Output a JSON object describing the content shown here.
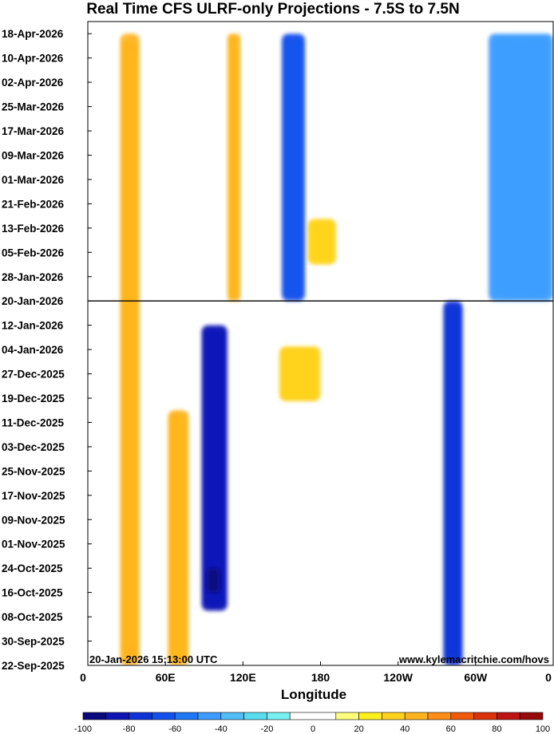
{
  "chart_data": {
    "type": "heatmap",
    "title": "Real Time CFS ULRF-only Projections - 7.5S to 7.5N",
    "xlabel": "Longitude",
    "ylabel": "",
    "x_ticks": [
      "0",
      "60E",
      "120E",
      "180",
      "120W",
      "60W",
      "0"
    ],
    "x_tick_degrees_east": [
      0,
      60,
      120,
      180,
      240,
      300,
      360
    ],
    "xlim": [
      0,
      360
    ],
    "y_ticks": [
      "18-Apr-2026",
      "10-Apr-2026",
      "02-Apr-2026",
      "25-Mar-2026",
      "17-Mar-2026",
      "09-Mar-2026",
      "01-Mar-2026",
      "21-Feb-2026",
      "13-Feb-2026",
      "05-Feb-2026",
      "28-Jan-2026",
      "20-Jan-2026",
      "12-Jan-2026",
      "04-Jan-2026",
      "27-Dec-2025",
      "19-Dec-2025",
      "11-Dec-2025",
      "03-Dec-2025",
      "25-Nov-2025",
      "17-Nov-2025",
      "09-Nov-2025",
      "01-Nov-2025",
      "24-Oct-2025",
      "16-Oct-2025",
      "08-Oct-2025",
      "30-Sep-2025",
      "22-Sep-2025"
    ],
    "ylim": [
      "22-Sep-2025",
      "22-Apr-2026"
    ],
    "divider_date": "20-Jan-2026",
    "annotation_left": "20-Jan-2026 15:13:00 UTC",
    "annotation_right": "www.kylemacritchie.com/hovs",
    "colorbar": {
      "ticks": [
        -100,
        -80,
        -60,
        -40,
        -20,
        0,
        20,
        40,
        60,
        80,
        100
      ],
      "levels": [
        -100,
        -90,
        -80,
        -70,
        -60,
        -50,
        -40,
        -30,
        -20,
        -10,
        10,
        20,
        30,
        40,
        50,
        60,
        70,
        80,
        90,
        100
      ],
      "colors": [
        "#0a0a7d",
        "#0f14b4",
        "#0f32d7",
        "#1450eb",
        "#1e78f5",
        "#3c9bff",
        "#50bef5",
        "#5adcf0",
        "#78f0f0",
        "#ffffff",
        "#ffff7d",
        "#fff01e",
        "#ffd21e",
        "#ffb41e",
        "#ff8c14",
        "#f05a0a",
        "#dc320a",
        "#be1414",
        "#960a0a"
      ]
    },
    "features": [
      {
        "kind": "suppressed",
        "lon_start": 25,
        "lon_end": 40,
        "date_start": "22-Sep-2025",
        "date_end": "18-Apr-2026",
        "peak": 50
      },
      {
        "kind": "suppressed",
        "lon_start": 62,
        "lon_end": 78,
        "date_start": "22-Sep-2025",
        "date_end": "15-Dec-2025",
        "peak": 45
      },
      {
        "kind": "suppressed",
        "lon_start": 108,
        "lon_end": 118,
        "date_start": "20-Jan-2026",
        "date_end": "18-Apr-2026",
        "peak": 45
      },
      {
        "kind": "suppressed",
        "lon_start": 148,
        "lon_end": 180,
        "date_start": "18-Dec-2025",
        "date_end": "05-Jan-2026",
        "peak": 40
      },
      {
        "kind": "suppressed",
        "lon_start": 170,
        "lon_end": 192,
        "date_start": "01-Feb-2026",
        "date_end": "16-Feb-2026",
        "peak": 35
      },
      {
        "kind": "enhanced",
        "lon_start": 88,
        "lon_end": 108,
        "date_start": "10-Oct-2025",
        "date_end": "12-Jan-2026",
        "peak": -80
      },
      {
        "kind": "enhanced",
        "lon_start": 92,
        "lon_end": 102,
        "date_start": "16-Oct-2025",
        "date_end": "24-Oct-2025",
        "peak": -100
      },
      {
        "kind": "enhanced",
        "lon_start": 150,
        "lon_end": 168,
        "date_start": "20-Jan-2026",
        "date_end": "18-Apr-2026",
        "peak": -65
      },
      {
        "kind": "enhanced",
        "lon_start": 275,
        "lon_end": 290,
        "date_start": "22-Sep-2025",
        "date_end": "20-Jan-2026",
        "peak": -75
      },
      {
        "kind": "enhanced",
        "lon_start": 310,
        "lon_end": 360,
        "date_start": "20-Jan-2026",
        "date_end": "18-Apr-2026",
        "peak": -45
      }
    ]
  }
}
